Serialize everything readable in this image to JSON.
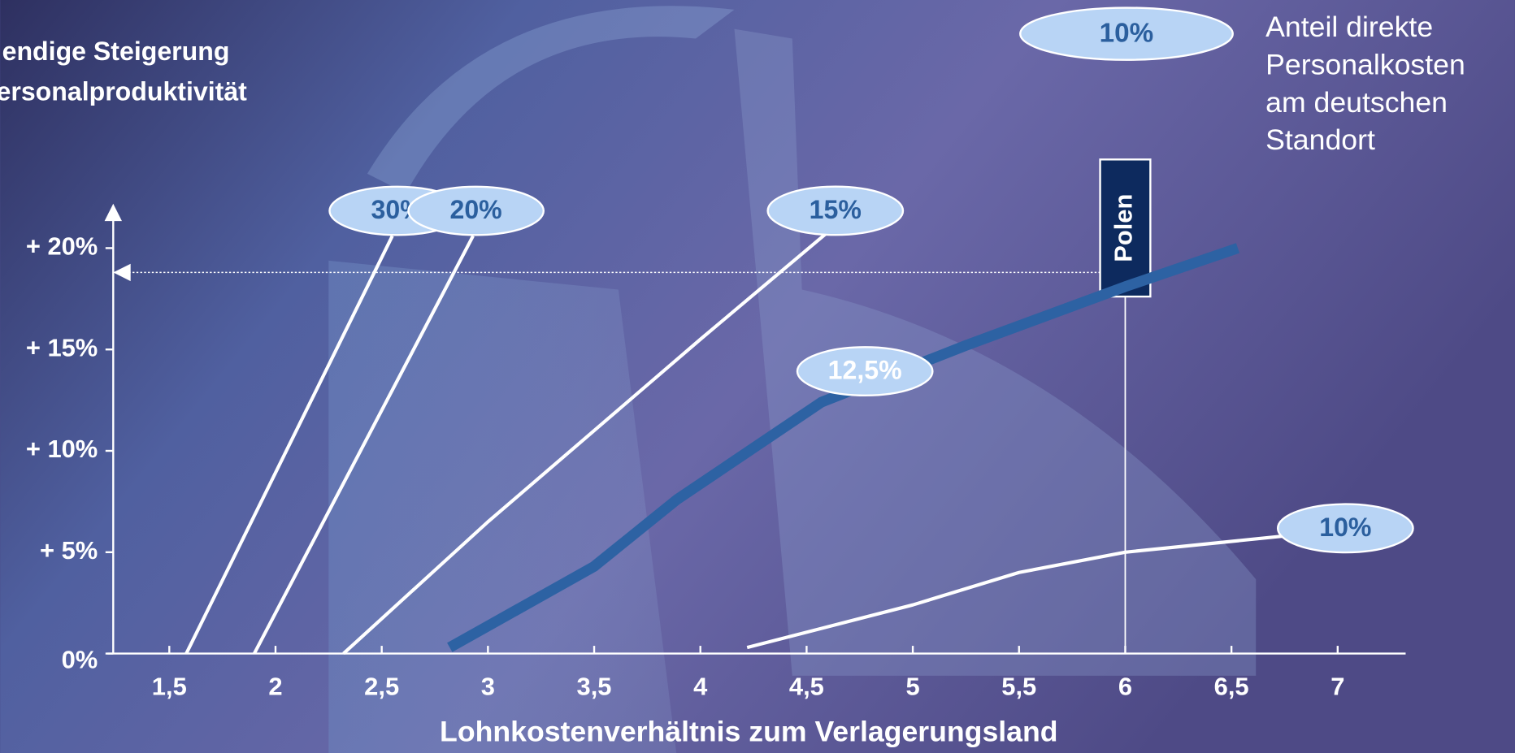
{
  "chart_data": {
    "type": "line",
    "title": [
      "endige Steigerung",
      "ersonalproduktivität"
    ],
    "xlabel": "Lohnkostenverhältnis zum Verlagerungsland",
    "xlim": [
      1.236,
      7.32
    ],
    "ylim": [
      0,
      22
    ],
    "xticks": [
      {
        "value": 1.5,
        "label": "1,5"
      },
      2,
      {
        "value": 2.5,
        "label": "2,5"
      },
      3,
      {
        "value": 3.5,
        "label": "3,5"
      },
      4,
      {
        "value": 4.5,
        "label": "4,5"
      },
      5,
      {
        "value": 5.5,
        "label": "5,5"
      },
      6,
      {
        "value": 6.5,
        "label": "6,5"
      },
      7
    ],
    "yticks": [
      {
        "value": 0,
        "label": "0%"
      },
      {
        "value": 5,
        "label": "+ 5%"
      },
      {
        "value": 10,
        "label": "+ 10%"
      },
      {
        "value": 15,
        "label": "+ 15%"
      },
      {
        "value": 20,
        "label": "+ 20%"
      }
    ],
    "grid": false,
    "series": [
      {
        "name": "30%",
        "color": "#ffffff",
        "x": [
          1.58,
          2.55
        ],
        "values": [
          0,
          20.6
        ]
      },
      {
        "name": "20%",
        "color": "#ffffff",
        "x": [
          1.9,
          2.93
        ],
        "values": [
          0,
          20.6
        ]
      },
      {
        "name": "15%",
        "color": "#ffffff",
        "x": [
          2.32,
          3.0,
          3.5,
          4.0,
          4.59
        ],
        "values": [
          0,
          6.5,
          11,
          15.5,
          20.7
        ]
      },
      {
        "name": "12,5%",
        "color": "#2d62a3",
        "x": [
          2.82,
          3.5,
          3.89,
          4.57,
          5.25,
          6.0,
          6.53
        ],
        "values": [
          0.3,
          4.3,
          7.6,
          12.4,
          15.2,
          18.1,
          20
        ]
      },
      {
        "name": "10%",
        "color": "#ffffff",
        "x": [
          4.22,
          5.0,
          5.5,
          6.0,
          6.75
        ],
        "values": [
          0.3,
          2.4,
          4,
          5,
          5.8
        ]
      }
    ],
    "annotation": {
      "text": "Polen",
      "x": 6,
      "y": 18.8
    },
    "legend": {
      "sample": "10%",
      "lines": [
        "Anteil direkte",
        "Personalkosten",
        "am deutschen",
        "Standort"
      ]
    }
  }
}
